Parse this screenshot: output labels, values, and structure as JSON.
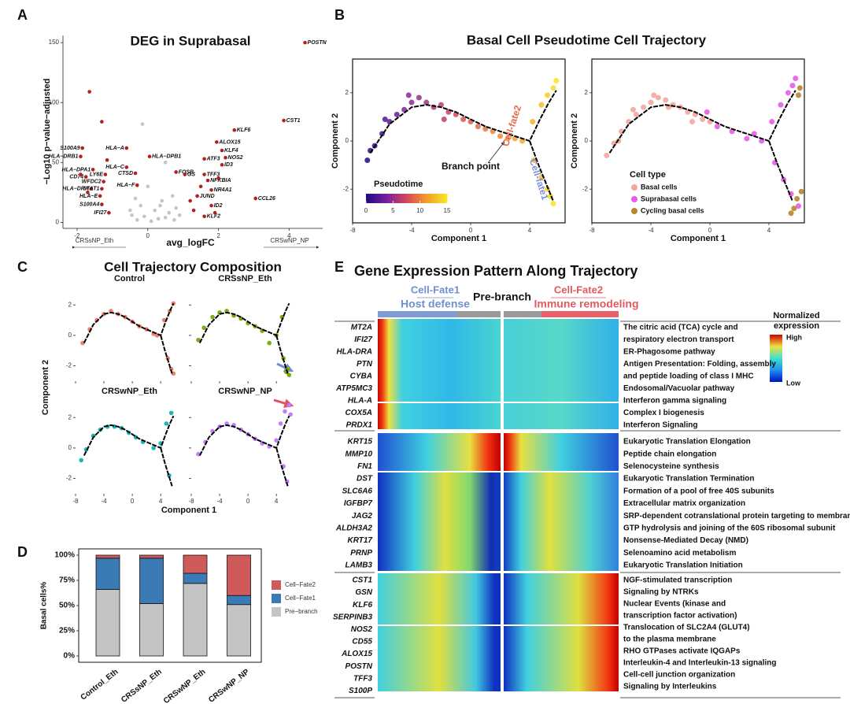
{
  "chart_data": [
    {
      "type": "volcano",
      "panel_label": "A",
      "title": "DEG in Suprabasal",
      "x_label": "avg_logFC",
      "y_label": "−Log10 p−value−adjusted",
      "direction_labels": [
        "CRSsNP_Eth",
        "CRSwNP_NP"
      ],
      "xlim": [
        -2.4,
        4.95
      ],
      "ylim": [
        -5,
        156
      ],
      "xticks": [
        -2,
        0,
        2,
        4
      ],
      "yticks": [
        0,
        50,
        100,
        150
      ],
      "series": [
        {
          "color": "#b41e1e",
          "labels": [
            "POSTN",
            "CST1",
            "KLF6",
            "ALOX15",
            "KLF4",
            "NOS2",
            "ATF3",
            "ID3",
            "FOSB",
            "GS",
            "TFF3",
            "NFKBIA",
            "NR4A1",
            "JUND",
            "ID2",
            "CCL26",
            "KLF2",
            "S100A9",
            "HLA−DRB1",
            "HLA−A",
            "HLA−DPB1",
            "HLA−C",
            "HLA−DPA1",
            "LY6E",
            "CD74",
            "CTSD",
            "WFDC2",
            "HLA−F",
            "HLA−DRA",
            "STAT1",
            "HLA−E",
            "S100A4",
            "IFI27"
          ],
          "x": [
            4.45,
            3.85,
            2.45,
            1.95,
            2.1,
            2.2,
            1.6,
            2.1,
            0.8,
            1.05,
            1.6,
            1.7,
            1.8,
            1.4,
            1.8,
            3.05,
            1.6,
            -1.85,
            -1.9,
            -0.6,
            0.05,
            -0.6,
            -1.55,
            -1.2,
            -1.75,
            -0.35,
            -1.25,
            -0.3,
            -1.6,
            -1.3,
            -1.35,
            -1.3,
            -1.1
          ],
          "y": [
            150,
            85,
            77,
            67,
            60,
            54,
            53,
            48,
            42,
            40,
            40,
            35,
            27,
            22,
            14,
            20,
            5,
            62,
            55,
            62,
            55,
            46,
            44,
            40,
            38,
            41,
            34,
            31,
            28,
            28,
            22,
            15,
            8
          ]
        },
        {
          "color": "#b41e1e",
          "x": [
            -1.65,
            -1.3,
            -1.9,
            1.5,
            1.2,
            1.9,
            2.0,
            1.3,
            -1.7,
            -1.15
          ],
          "y": [
            109,
            84,
            40,
            30,
            18,
            8,
            37,
            10,
            25,
            52
          ]
        },
        {
          "color": "#c4c4c4",
          "x": [
            -0.3,
            0.1,
            0.3,
            -0.1,
            0.5,
            0.6,
            -0.45,
            0.2,
            0.8,
            -0.2,
            0.4,
            0.7,
            -0.35,
            0.9,
            0.0,
            -0.15,
            0.5,
            0.35,
            -0.5,
            0.75
          ],
          "y": [
            2,
            1,
            3,
            5,
            4,
            8,
            6,
            10,
            12,
            14,
            18,
            22,
            20,
            6,
            30,
            82,
            50,
            14,
            10,
            2
          ]
        }
      ]
    },
    {
      "type": "pseudotime",
      "panel_label": "B",
      "title": "Basal Cell Pseudotime Cell Trajectory",
      "x_label": "Component 1",
      "y_label": "Component 2",
      "xlim": [
        -8,
        6.4
      ],
      "ylim": [
        -3.4,
        3.4
      ],
      "xticks": [
        -8,
        -4,
        0,
        4
      ],
      "yticks": [
        -2,
        0,
        2
      ],
      "annotations": [
        {
          "text": "Cell-fate2",
          "color": "#e4694f"
        },
        {
          "text": "Cell-fate1",
          "color": "#7f8fd6"
        },
        {
          "text": "Branch point",
          "color": "#111111"
        }
      ],
      "colorbar": {
        "title": "Pseudotime",
        "lim": [
          0,
          15
        ],
        "ticks": [
          0,
          5,
          10,
          15
        ],
        "colors": [
          "#1f0c84",
          "#7a1fa2",
          "#d24a5b",
          "#f49a2a",
          "#f7e425"
        ]
      },
      "points": {
        "x": [
          -7,
          -6.5,
          -6,
          -5.5,
          -5,
          -4.5,
          -4,
          -3.5,
          -3,
          -2.5,
          -2,
          -1.5,
          -1,
          -0.5,
          0,
          0.5,
          1,
          1.5,
          2,
          2.5,
          3,
          3.5,
          4.2,
          4.8,
          5.2,
          5.8,
          5.6,
          4.3,
          4.8,
          5.2,
          5.6,
          5.4,
          -6.8,
          -5.8,
          -4.2,
          -1.8
        ],
        "y": [
          -0.8,
          -0.2,
          0.3,
          0.8,
          1.1,
          1.3,
          1.6,
          1.8,
          1.6,
          1.4,
          1.5,
          1.2,
          1.1,
          0.9,
          0.8,
          0.6,
          0.5,
          0.4,
          0.2,
          0.1,
          0.1,
          0,
          0.8,
          1.5,
          1.9,
          2.5,
          2.2,
          -0.8,
          -1.5,
          -2,
          -2.6,
          -2.3,
          -0.4,
          0.9,
          1.9,
          0.9
        ],
        "t": [
          0,
          1,
          1.5,
          2.5,
          3,
          4,
          4.5,
          5,
          5.5,
          6,
          6.5,
          7,
          7.5,
          8,
          8.5,
          9,
          9.5,
          10,
          10.5,
          11,
          11.5,
          12,
          12.5,
          13,
          14,
          15,
          14.5,
          12.5,
          13,
          14,
          15,
          14.5,
          0.5,
          2,
          4.5,
          6.5
        ]
      },
      "trajectory": {
        "x": [
          -6.8,
          -5.5,
          -4,
          -3,
          -2,
          -1,
          0,
          1,
          2,
          3,
          4,
          4.7,
          5.3,
          5.8,
          null,
          4,
          4.6,
          5.2,
          5.6
        ],
        "y": [
          -0.5,
          0.7,
          1.4,
          1.5,
          1.4,
          1.2,
          0.9,
          0.6,
          0.4,
          0.2,
          0,
          0.9,
          1.6,
          2.1,
          null,
          0,
          -1,
          -1.9,
          -2.5
        ]
      }
    },
    {
      "type": "celltype",
      "x_label": "Component 1",
      "y_label": "Component 2",
      "xlim": [
        -8,
        6.4
      ],
      "ylim": [
        -3.4,
        3.4
      ],
      "xticks": [
        -8,
        -4,
        0,
        4
      ],
      "yticks": [
        -2,
        0,
        2
      ],
      "legend_title": "Cell type",
      "series": [
        {
          "name": "Basal cells",
          "color": "#f4a6a0",
          "x": [
            -7,
            -6.5,
            -6,
            -5.5,
            -5,
            -4.5,
            -4,
            -3.5,
            -3,
            -2.5,
            -2,
            -1.5,
            -1,
            -0.5,
            0,
            -6.2,
            -5.2,
            -3.8,
            -2.8,
            -1.2
          ],
          "y": [
            -0.6,
            -0.1,
            0.4,
            0.8,
            1.1,
            1.4,
            1.6,
            1.8,
            1.7,
            1.5,
            1.4,
            1.2,
            1.1,
            0.9,
            0.8,
            0.0,
            1.3,
            1.9,
            1.4,
            0.8
          ]
        },
        {
          "name": "Suprabasal cells",
          "color": "#e75ce8",
          "x": [
            0.5,
            1.5,
            2.5,
            3.5,
            4.2,
            4.8,
            5.3,
            5.8,
            4.4,
            5,
            5.5,
            6,
            5.6,
            3,
            -0.2
          ],
          "y": [
            0.6,
            0.4,
            0.1,
            0,
            0.8,
            1.5,
            2,
            2.6,
            -0.9,
            -1.6,
            -2.2,
            -2.7,
            2.3,
            0.3,
            1.2
          ]
        },
        {
          "name": "Cycling basal cells",
          "color": "#b5882a",
          "x": [
            6.1,
            6,
            5.9,
            5.7,
            6.2,
            5.5
          ],
          "y": [
            2.2,
            1.9,
            -2.4,
            -2.8,
            -2.1,
            -3.0
          ]
        }
      ],
      "trajectory": {
        "x": [
          -6.8,
          -5.5,
          -4,
          -3,
          -2,
          -1,
          0,
          1,
          2,
          3,
          4,
          4.7,
          5.3,
          5.8,
          null,
          4,
          4.6,
          5.2,
          5.6
        ],
        "y": [
          -0.5,
          0.7,
          1.4,
          1.5,
          1.4,
          1.2,
          0.9,
          0.6,
          0.4,
          0.2,
          0,
          0.9,
          1.6,
          2.1,
          null,
          0,
          -1,
          -1.9,
          -2.5
        ]
      }
    },
    {
      "type": "small_multiples",
      "panel_label": "C",
      "title": "Cell Trajectory Composition",
      "x_label": "Component 1",
      "y_label": "Component 2",
      "xlim": [
        -8,
        7.2
      ],
      "ylim": [
        -3,
        3.3
      ],
      "xticks": [
        -8,
        -4,
        0,
        4
      ],
      "yticks": [
        -2,
        0,
        2
      ],
      "panels": [
        {
          "title": "Control",
          "color": "#f08070",
          "x": [
            -7,
            -6,
            -5,
            -4,
            -3,
            -2,
            -1,
            0,
            1,
            2,
            3,
            3.5,
            4.5,
            5.3,
            5.8,
            5.5,
            5,
            5.8
          ],
          "y": [
            -0.5,
            0.4,
            1,
            1.4,
            1.6,
            1.4,
            1.2,
            0.9,
            0.6,
            0.4,
            0.1,
            0,
            1,
            1.6,
            2.1,
            -2.2,
            -1.5,
            -2.5
          ]
        },
        {
          "title": "CRSsNP_Eth",
          "color": "#7cac10",
          "x": [
            -7,
            -6.2,
            -5,
            -4,
            -3,
            -2,
            -1,
            0,
            1,
            2,
            3,
            4,
            5,
            5.6,
            5.8,
            5.4,
            4.8
          ],
          "y": [
            -0.3,
            0.5,
            1.2,
            1.5,
            1.6,
            1.3,
            1.1,
            0.8,
            0.6,
            0.3,
            -0.5,
            0,
            -1.5,
            -2.2,
            -2.6,
            -2.4,
            1.2
          ]
        },
        {
          "title": "CRSwNP_Eth",
          "color": "#20b5b5",
          "x": [
            -7.2,
            -6.5,
            -5.5,
            -4.5,
            -3.5,
            -2.5,
            -1.5,
            -0.5,
            0.5,
            1.5,
            3,
            4,
            4.8,
            5.5,
            5.2
          ],
          "y": [
            -0.8,
            -0.1,
            0.8,
            1.2,
            1.4,
            1.4,
            1.3,
            1,
            0.7,
            0.4,
            0,
            0.3,
            1.6,
            2.3,
            -1.8
          ]
        },
        {
          "title": "CRSwNP_NP",
          "color": "#c77cff",
          "x": [
            -7,
            -6,
            -5,
            -4,
            -3,
            -2,
            -1,
            0,
            1,
            2,
            3,
            4,
            4.6,
            5.2,
            5.8,
            6,
            5.5,
            5
          ],
          "y": [
            -0.4,
            0.4,
            1.1,
            1.4,
            1.6,
            1.5,
            1.2,
            0.9,
            0.6,
            0.3,
            0.1,
            0.5,
            1.6,
            2.4,
            2.8,
            2.2,
            -2.2,
            -1.2
          ]
        }
      ],
      "trajectory": {
        "x": [
          -6.8,
          -5.5,
          -4,
          -3,
          -2,
          -1,
          0,
          1,
          2,
          3,
          4,
          4.7,
          5.3,
          5.8,
          null,
          4,
          4.6,
          5.2,
          5.6
        ],
        "y": [
          -0.5,
          0.7,
          1.4,
          1.5,
          1.4,
          1.2,
          0.9,
          0.6,
          0.4,
          0.2,
          0,
          0.9,
          1.6,
          2.1,
          null,
          0,
          -1,
          -1.9,
          -2.5
        ]
      }
    },
    {
      "type": "stacked_bar",
      "panel_label": "D",
      "y_label": "Basal cells%",
      "categories": [
        "Control_Eth",
        "CRSsNP_Eth",
        "CRSwNP_Eth",
        "CRSwNP_NP"
      ],
      "series": [
        {
          "name": "Cell−Fate2",
          "color": "#d0595a",
          "values": [
            3,
            3,
            18,
            40
          ]
        },
        {
          "name": "Cell−Fate1",
          "color": "#3a7ab5",
          "values": [
            31,
            45,
            10,
            9
          ]
        },
        {
          "name": "Pre−branch",
          "color": "#c4c4c4",
          "values": [
            66,
            52,
            72,
            51
          ]
        }
      ],
      "ylim": [
        0,
        100
      ],
      "yticks": [
        {
          "value": 0,
          "label": "0%"
        },
        {
          "value": 25,
          "label": "25%"
        },
        {
          "value": 50,
          "label": "50%"
        },
        {
          "value": 75,
          "label": "75%"
        },
        {
          "value": 100,
          "label": "100%"
        }
      ]
    },
    {
      "type": "heatmap",
      "panel_label": "E",
      "title": "Gene Expression Pattern Along Trajectory",
      "header": [
        {
          "text": "Cell-Fate1",
          "color": "#6f8fd0"
        },
        {
          "text": "Host defense",
          "color": "#6f8fd0"
        },
        {
          "text": "Pre-branch",
          "color": "#111111"
        },
        {
          "text": "Cell-Fate2",
          "color": "#e05a60"
        },
        {
          "text": "Immune remodeling",
          "color": "#e05a60"
        }
      ],
      "genes": [
        [
          "MT2A",
          "IFI27",
          "HLA-DRA",
          "PTN",
          "CYBA",
          "ATP5MC3",
          "HLA-A",
          "COX5A",
          "PRDX1"
        ],
        [
          "KRT15",
          "MMP10",
          "FN1",
          "DST",
          "SLC6A6",
          "IGFBP7",
          "JAG2",
          "ALDH3A2",
          "KRT17",
          "PRNP",
          "LAMB3"
        ],
        [
          "CST1",
          "GSN",
          "KLF6",
          "SERPINB3",
          "NOS2",
          "CD55",
          "ALOX15",
          "POSTN",
          "TFF3",
          "S100P"
        ]
      ],
      "pathways": [
        [
          "The citric acid (TCA) cycle and",
          "respiratory electron transport",
          "ER-Phagosome pathway",
          "Antigen Presentation: Folding, assembly",
          "and peptide loading of class I MHC",
          "Endosomal/Vacuolar pathway",
          "Interferon gamma signaling",
          "Complex I biogenesis",
          "Interferon Signaling"
        ],
        [
          "Eukaryotic Translation Elongation",
          "Peptide chain elongation",
          "Selenocysteine synthesis",
          "Eukaryotic Translation Termination",
          "Formation of a pool of free 40S subunits",
          "Extracellular matrix organization",
          "SRP-dependent cotranslational protein targeting to membrane",
          "GTP hydrolysis and joining of the 60S ribosomal subunit",
          "Nonsense-Mediated Decay (NMD)",
          "Selenoamino acid metabolism",
          "Eukaryotic Translation Initiation"
        ],
        [
          "NGF-stimulated transcription",
          "Signaling by NTRKs",
          "Nuclear Events (kinase and",
          "transcription factor activation)",
          "Translocation of SLC2A4 (GLUT4)",
          "to the plasma membrane",
          "RHO GTPases activate IQGAPs",
          "Interleukin-4 and Interleukin-13 signaling",
          "Cell-cell junction organization",
          "Signaling by Interleukins"
        ]
      ],
      "legend_title": [
        "Normalized",
        "expression"
      ],
      "legend_high": "High",
      "legend_low": "Low"
    }
  ]
}
